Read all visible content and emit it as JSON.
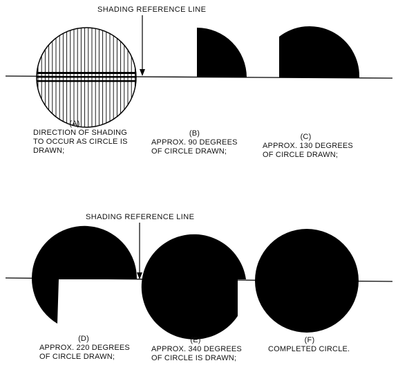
{
  "top_reference_label": "SHADING REFERENCE LINE",
  "bottom_reference_label": "SHADING REFERENCE LINE",
  "panels": [
    {
      "tag": "(A)",
      "lines": [
        "DIRECTION OF SHADING",
        "TO OCCUR AS CIRCLE IS",
        "DRAWN;"
      ]
    },
    {
      "tag": "(B)",
      "lines": [
        "APPROX. 90 DEGREES",
        "OF CIRCLE DRAWN;"
      ]
    },
    {
      "tag": "(C)",
      "lines": [
        "APPROX. 130 DEGREES",
        "OF CIRCLE DRAWN;"
      ]
    },
    {
      "tag": "(D)",
      "lines": [
        "APPROX. 220 DEGREES",
        "OF CIRCLE DRAWN;"
      ]
    },
    {
      "tag": "(E)",
      "lines": [
        "APPROX. 340 DEGREES",
        "OF CIRCLE IS DRAWN;"
      ]
    },
    {
      "tag": "(F)",
      "lines": [
        "COMPLETED CIRCLE."
      ]
    }
  ]
}
